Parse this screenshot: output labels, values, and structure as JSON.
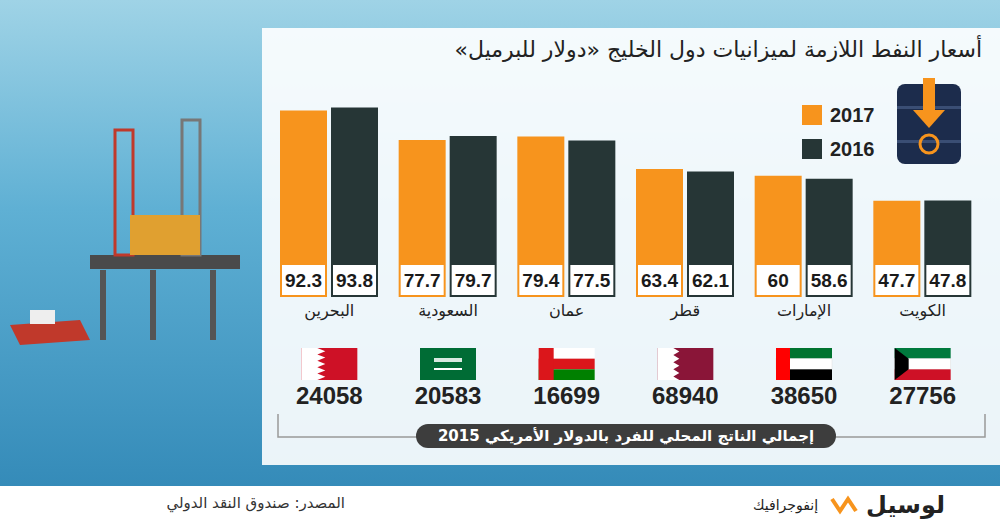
{
  "chart_data": {
    "type": "bar",
    "title": "أسعار النفط اللازمة لميزانيات دول الخليج «دولار للبرميل»",
    "categories": [
      "البحرين",
      "السعودية",
      "عمان",
      "قطر",
      "الإمارات",
      "الكويت"
    ],
    "series": [
      {
        "name": "2017",
        "color": "#f7941d",
        "values": [
          92.3,
          77.7,
          79.4,
          63.4,
          60,
          47.7
        ]
      },
      {
        "name": "2016",
        "color": "#263636",
        "values": [
          93.8,
          79.7,
          77.5,
          62.1,
          58.6,
          47.8
        ]
      }
    ],
    "ylim": [
      0,
      100
    ],
    "tick_labels": "x",
    "data_labels": true,
    "legend": "top right"
  },
  "gdp_per_capita": {
    "title": "إجمالي الناتج المحلي للفرد بالدولار الأمريكي 2015",
    "values": [
      24058,
      20583,
      16699,
      68940,
      38650,
      27756
    ]
  },
  "source": "المصدر: صندوق النقد الدولي",
  "brand": "لوسيل",
  "brand_section": "إنفوجرافيك"
}
